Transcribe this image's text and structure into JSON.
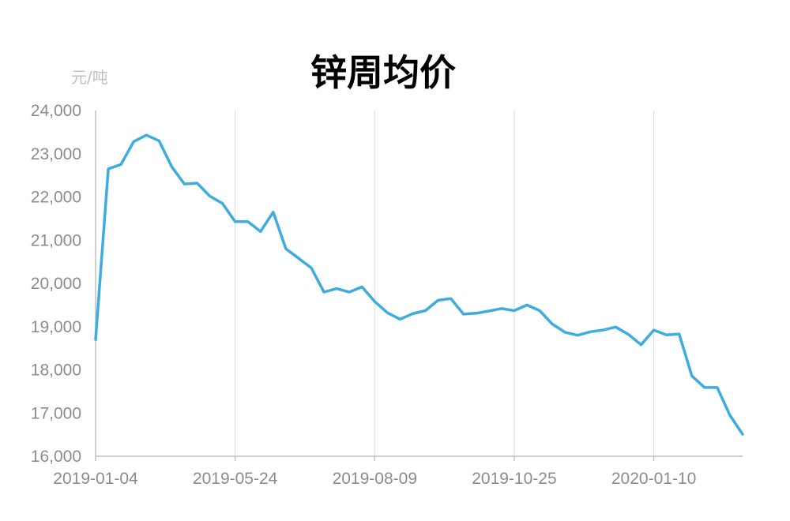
{
  "chart_data": {
    "type": "line",
    "title": "锌周均价",
    "ylabel": "元/吨",
    "xlabel": "",
    "ylim": [
      16000,
      24000
    ],
    "yticks": [
      16000,
      17000,
      18000,
      19000,
      20000,
      21000,
      22000,
      23000,
      24000
    ],
    "ytick_labels": [
      "16,000",
      "17,000",
      "18,000",
      "19,000",
      "20,000",
      "21,000",
      "22,000",
      "23,000",
      "24,000"
    ],
    "xticks": [
      "2019-01-04",
      "2019-05-24",
      "2019-08-09",
      "2019-10-25",
      "2020-01-10"
    ],
    "grid": "vertical",
    "line_color": "#3eacdc",
    "series": [
      {
        "values": [
          18700,
          22650,
          22750,
          23280,
          23430,
          23300,
          22700,
          22300,
          22320,
          22020,
          21850,
          21430,
          21430,
          21200,
          21650,
          20800,
          20580,
          20360,
          19800,
          19880,
          19800,
          19920,
          19580,
          19320,
          19170,
          19300,
          19370,
          19610,
          19650,
          19290,
          19310,
          19360,
          19420,
          19370,
          19500,
          19370,
          19060,
          18870,
          18800,
          18880,
          18920,
          18990,
          18820,
          18580,
          18920,
          18810,
          18830,
          17860,
          17590,
          17590,
          16950,
          16510
        ]
      }
    ],
    "x_tick_indices": [
      0,
      11,
      22,
      33,
      44
    ]
  }
}
